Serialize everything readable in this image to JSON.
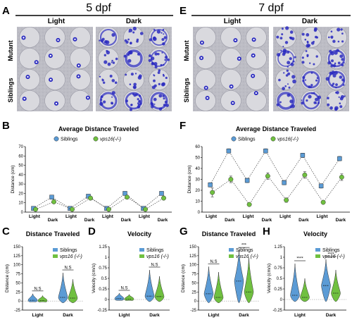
{
  "panel_letters": {
    "A": "A",
    "B": "B",
    "C": "C",
    "D": "D",
    "E": "E",
    "F": "F",
    "G": "G",
    "H": "H"
  },
  "headers": {
    "left": "5 dpf",
    "right": "7 dpf"
  },
  "well_labels": {
    "light": "Light",
    "dark": "Dark",
    "mutant": "Mutant",
    "siblings": "Siblings"
  },
  "legend": {
    "siblings": "Siblings",
    "mutant": "vps16(-/-)",
    "mutant_spaced": "vps16 (-/-)"
  },
  "colors": {
    "siblings": "#5B9BD5",
    "mutant": "#70C040",
    "track": "#2A2AC0"
  },
  "chart_data": [
    {
      "id": "B",
      "type": "line",
      "title": "Average Distance Traveled",
      "ylabel": "Distance (cm)",
      "ylim": [
        0,
        70
      ],
      "yticks": [
        0,
        10,
        20,
        30,
        40,
        50,
        60,
        70
      ],
      "categories": [
        "Light",
        "Dark",
        "Light",
        "Dark",
        "Light",
        "Dark",
        "Light",
        "Dark"
      ],
      "series": [
        {
          "name": "Siblings",
          "values": [
            4,
            16,
            4,
            17,
            4,
            20,
            4,
            20
          ],
          "errors": [
            1,
            2,
            1,
            2,
            1,
            2,
            1,
            2
          ]
        },
        {
          "name": "vps16(-/-)",
          "values": [
            3,
            11,
            3,
            15,
            3,
            16,
            3,
            15
          ],
          "errors": [
            1,
            1,
            1,
            2,
            1,
            2,
            1,
            2
          ]
        }
      ]
    },
    {
      "id": "F",
      "type": "line",
      "title": "Average Distance Traveled",
      "ylabel": "Distance (cm)",
      "ylim": [
        0,
        60
      ],
      "yticks": [
        0,
        10,
        20,
        30,
        40,
        50,
        60
      ],
      "categories": [
        "Light",
        "Dark",
        "Light",
        "Dark",
        "Light",
        "Dark",
        "Light",
        "Dark"
      ],
      "series": [
        {
          "name": "Siblings",
          "values": [
            25,
            56,
            29,
            56,
            27,
            52,
            24,
            49
          ],
          "errors": [
            2,
            2,
            2,
            2,
            2,
            2,
            2,
            2
          ]
        },
        {
          "name": "vps16(-/-)",
          "values": [
            18,
            30,
            7,
            33,
            11,
            34,
            9,
            32
          ],
          "errors": [
            4,
            3,
            1,
            3,
            2,
            3,
            1,
            3
          ]
        }
      ]
    },
    {
      "id": "C",
      "type": "violin",
      "title": "Distance Traveled",
      "ylabel": "Distance (cm)",
      "ylim": [
        -25,
        150
      ],
      "yticks": [
        -25,
        0,
        25,
        50,
        75,
        100,
        125,
        150
      ],
      "categories": [
        "Light",
        "Dark"
      ],
      "annotations": [
        "N.S",
        "N.S"
      ],
      "series": [
        {
          "name": "Siblings",
          "medians": [
            2,
            10
          ],
          "max": [
            20,
            78
          ],
          "min": [
            -2,
            -5
          ]
        },
        {
          "name": "vps16 (-/-)",
          "medians": [
            1,
            8
          ],
          "max": [
            15,
            60
          ],
          "min": [
            -2,
            -5
          ]
        }
      ]
    },
    {
      "id": "D",
      "type": "violin",
      "title": "Velocity",
      "ylabel": "Velocity (cm/s)",
      "ylim": [
        -0.25,
        1.25
      ],
      "yticks": [
        -0.25,
        0.0,
        0.25,
        0.5,
        0.75,
        1.0,
        1.25
      ],
      "categories": [
        "Light",
        "Dark"
      ],
      "annotations": [
        "N.S",
        "N.S"
      ],
      "series": [
        {
          "name": "Siblings",
          "medians": [
            0.02,
            0.08
          ],
          "max": [
            0.15,
            0.7
          ],
          "min": [
            -0.02,
            -0.05
          ]
        },
        {
          "name": "vps16 (-/-)",
          "medians": [
            0.01,
            0.07
          ],
          "max": [
            0.12,
            0.55
          ],
          "min": [
            -0.02,
            -0.05
          ]
        }
      ]
    },
    {
      "id": "G",
      "type": "violin",
      "title": "Distance Traveled",
      "ylabel": "Distance (cm)",
      "ylim": [
        -25,
        150
      ],
      "yticks": [
        -25,
        0,
        25,
        50,
        75,
        100,
        125,
        150
      ],
      "categories": [
        "Light",
        "Dark"
      ],
      "annotations": [
        "N.S",
        "***"
      ],
      "series": [
        {
          "name": "Siblings",
          "medians": [
            20,
            55
          ],
          "max": [
            95,
            140
          ],
          "min": [
            -5,
            -5
          ]
        },
        {
          "name": "vps16 (-/-)",
          "medians": [
            10,
            25
          ],
          "max": [
            80,
            120
          ],
          "min": [
            -5,
            -5
          ]
        }
      ]
    },
    {
      "id": "H",
      "type": "violin",
      "title": "Velocity",
      "ylabel": "Velocity (cm/s)",
      "ylim": [
        -0.25,
        1.25
      ],
      "yticks": [
        -0.25,
        0.0,
        0.25,
        0.5,
        0.75,
        1.0,
        1.25
      ],
      "categories": [
        "Light",
        "Dark"
      ],
      "annotations": [
        "****",
        "****"
      ],
      "series": [
        {
          "name": "Siblings",
          "medians": [
            0.1,
            0.33
          ],
          "max": [
            0.85,
            0.95
          ],
          "min": [
            -0.05,
            -0.05
          ]
        },
        {
          "name": "vps16 (-/-)",
          "medians": [
            0.05,
            0.15
          ],
          "max": [
            0.5,
            0.7
          ],
          "min": [
            -0.05,
            -0.05
          ]
        }
      ]
    }
  ]
}
